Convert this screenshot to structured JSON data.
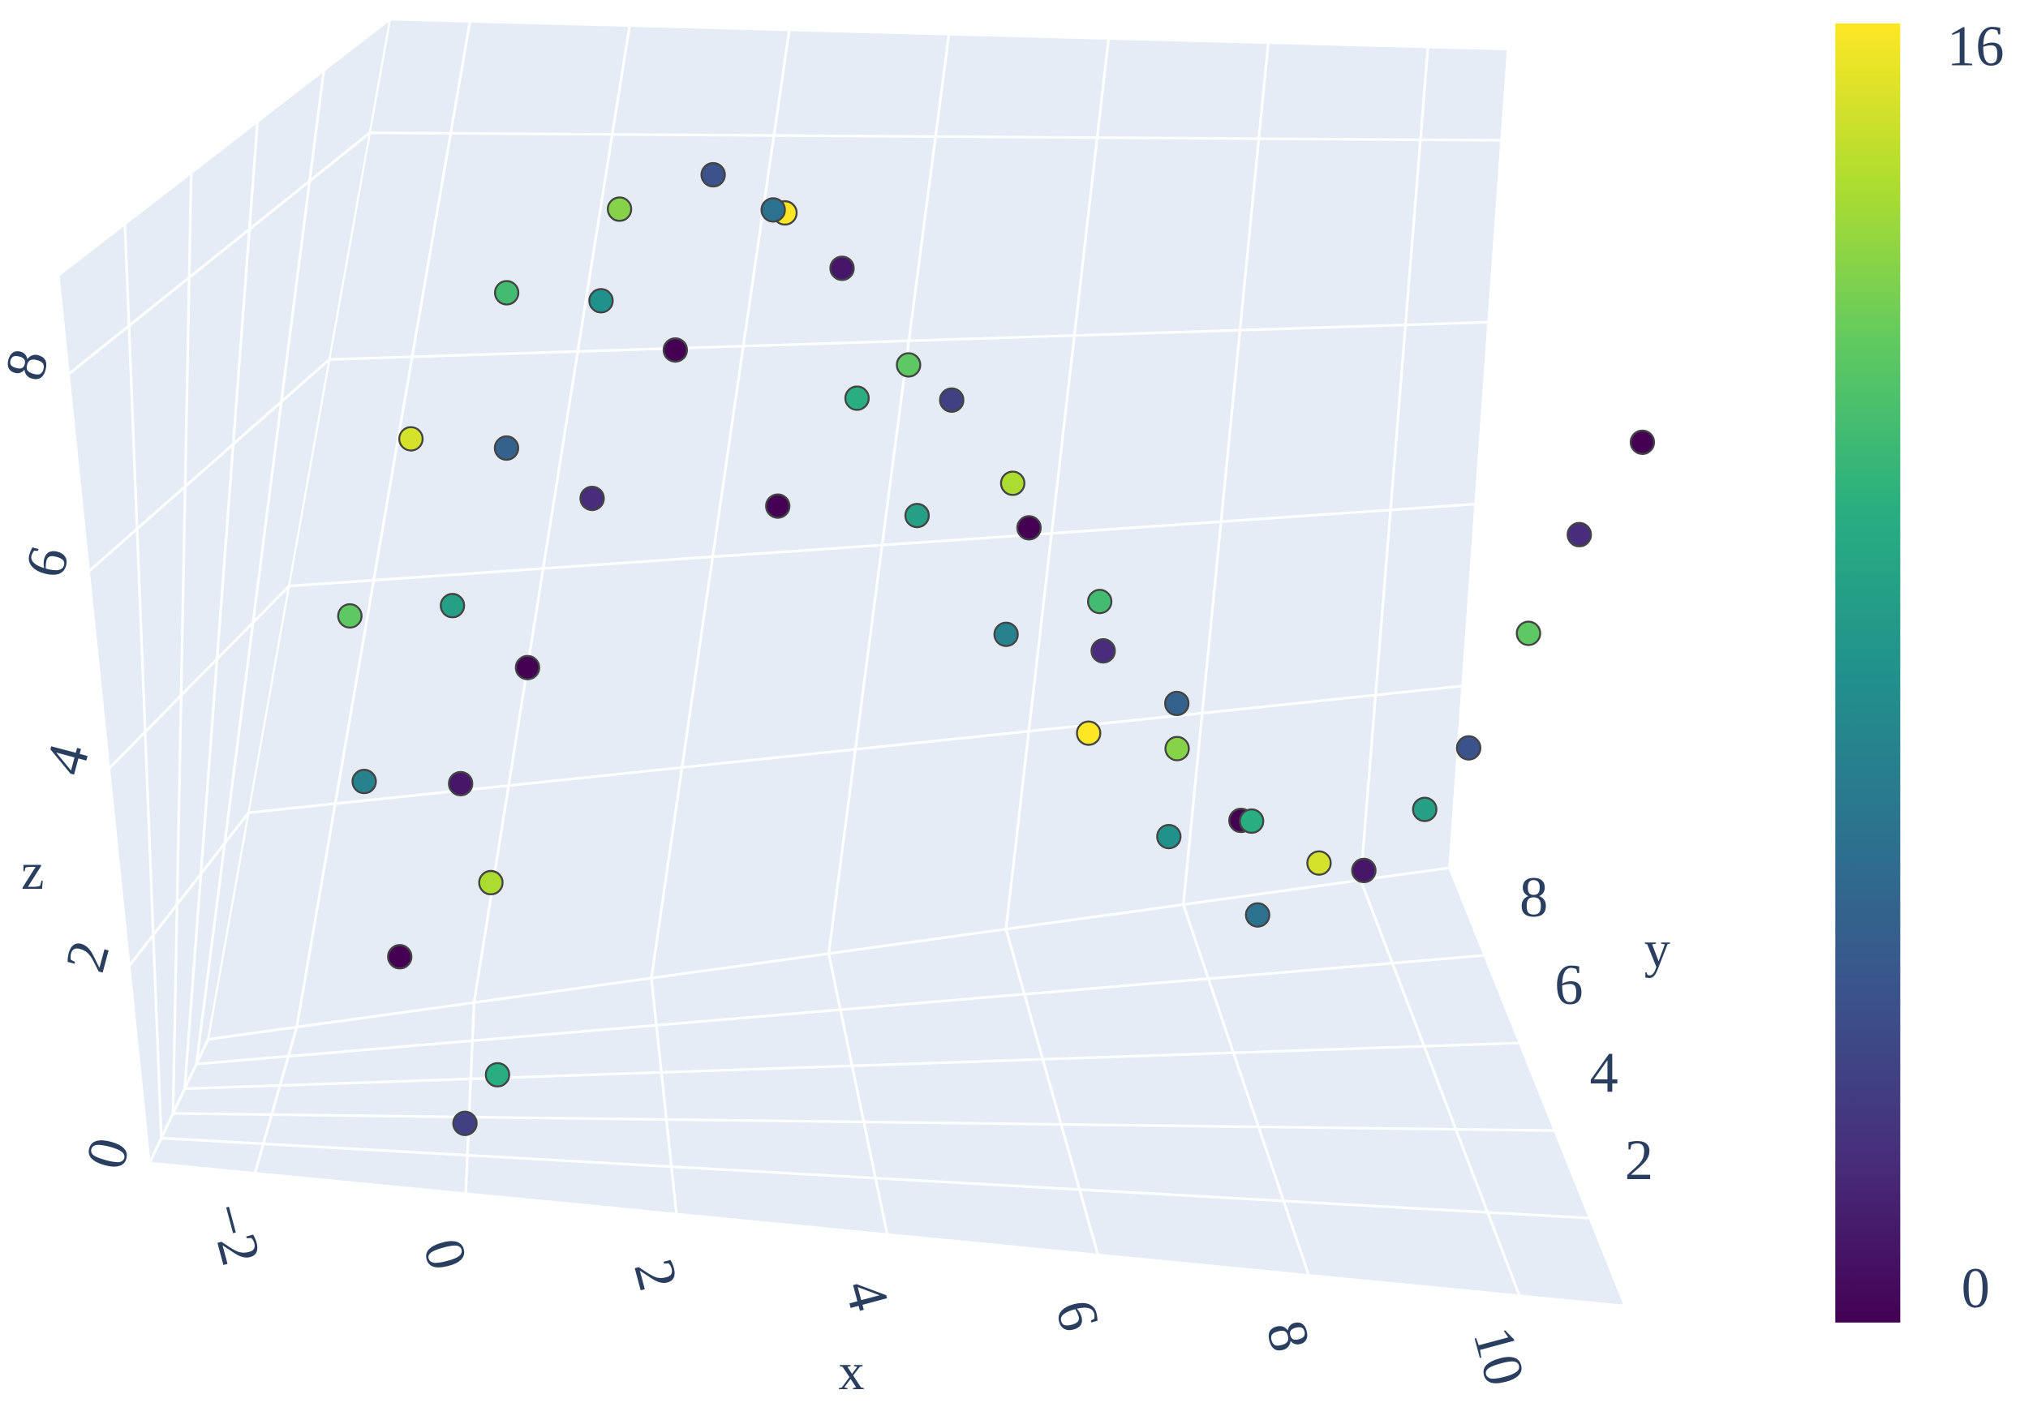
{
  "chart_data": {
    "type": "scatter3d",
    "xlabel": "x",
    "ylabel": "y",
    "zlabel": "z",
    "x": [
      0,
      0.3,
      -0.6,
      0.2,
      -1,
      -0.2,
      -1.2,
      -0.4,
      0.3,
      -0.8,
      0,
      0.8,
      0,
      0.8,
      1.5,
      1,
      1.8,
      2.5,
      2.5,
      3.2,
      3.5,
      2.8,
      4,
      4.5,
      4.2,
      5.2,
      5.5,
      5.2,
      6.3,
      6.5,
      6.2,
      7.3,
      7.5,
      7.2,
      8.2,
      8.5,
      8.3,
      9.2,
      9.5,
      10,
      10.2,
      10.5,
      10.7,
      11
    ],
    "y": [
      1,
      2,
      1.5,
      2.8,
      2.5,
      4,
      3,
      4.5,
      5.5,
      4,
      5,
      6,
      4.5,
      5.5,
      6.5,
      5,
      6,
      7,
      5.5,
      6.5,
      5.5,
      4.5,
      6,
      7,
      5,
      6.2,
      7.5,
      5.2,
      7,
      8,
      6,
      7.5,
      8.5,
      6.5,
      8,
      9,
      7,
      8.5,
      7.5,
      7,
      6,
      5,
      4,
      3
    ],
    "z": [
      0.5,
      0.8,
      2,
      2.5,
      3.5,
      3.2,
      5,
      4.8,
      4,
      6.5,
      6.2,
      5.5,
      7.8,
      7.5,
      6.8,
      8.5,
      8.6,
      8,
      8.4,
      7.6,
      6.6,
      5.8,
      6.8,
      6.2,
      5.6,
      5.6,
      4.8,
      4.4,
      4.2,
      3.4,
      3.2,
      3,
      2.2,
      2,
      1.6,
      1.2,
      1,
      0.9,
      1.2,
      2,
      3,
      4.5,
      5.8,
      7
    ],
    "color_values": [
      3,
      10,
      0,
      14,
      7,
      1,
      12,
      9,
      0,
      15,
      5,
      2,
      11,
      8,
      0,
      13,
      4,
      16,
      6,
      1,
      10,
      0,
      12,
      3,
      9,
      14,
      0,
      7,
      11,
      2,
      16,
      5,
      13,
      8,
      0,
      10,
      6,
      15,
      1,
      9,
      4,
      12,
      2,
      0
    ],
    "xlim": [
      -3,
      11
    ],
    "ylim": [
      0,
      10
    ],
    "zlim": [
      0,
      9
    ],
    "xticks": [
      {
        "value": -2,
        "label": "−2"
      },
      0,
      2,
      4,
      6,
      8,
      10
    ],
    "yticks": [
      2,
      4,
      6,
      8
    ],
    "zticks": [
      0,
      2,
      4,
      6,
      8
    ],
    "grid": true,
    "marker_edge_color": "#444444",
    "colorscale": [
      "#440154",
      "#472d7b",
      "#3b528b",
      "#2c728e",
      "#21918c",
      "#28ae80",
      "#5ec962",
      "#addc30",
      "#fde725"
    ],
    "colorbar": {
      "range": [
        0,
        16
      ],
      "ticks": [
        0,
        16
      ]
    }
  }
}
